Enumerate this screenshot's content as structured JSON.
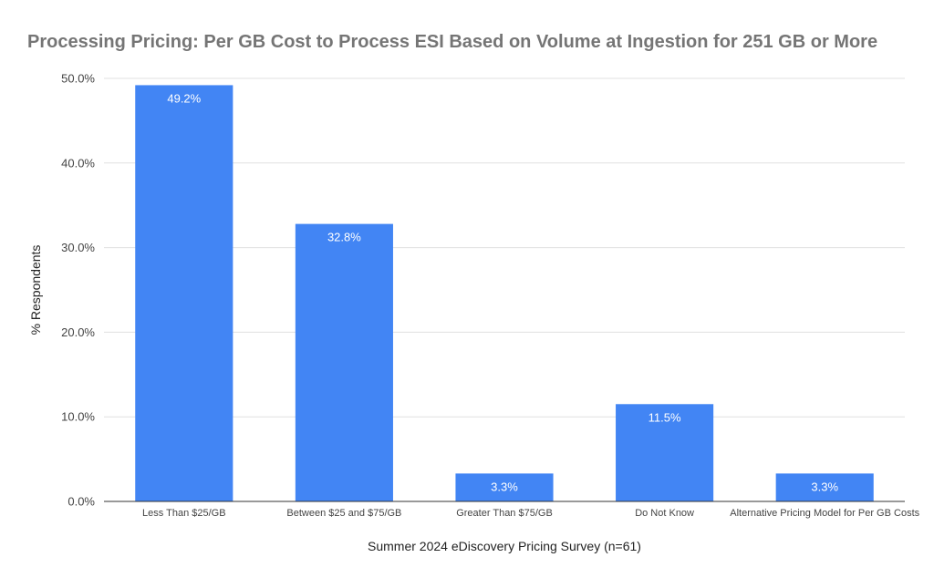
{
  "chart_data": {
    "type": "bar",
    "title": "Processing Pricing: Per GB Cost to Process ESI Based on Volume at Ingestion for 251 GB or More",
    "xlabel": "Summer 2024 eDiscovery Pricing Survey (n=61)",
    "ylabel": "% Respondents",
    "categories": [
      "Less Than $25/GB",
      "Between $25 and $75/GB",
      "Greater Than $75/GB",
      "Do Not Know",
      "Alternative Pricing Model for Per GB Costs"
    ],
    "values": [
      49.2,
      32.8,
      3.3,
      11.5,
      3.3
    ],
    "data_labels": [
      "49.2%",
      "32.8%",
      "3.3%",
      "11.5%",
      "3.3%"
    ],
    "ylim": [
      0,
      50
    ],
    "y_ticks": [
      0,
      10,
      20,
      30,
      40,
      50
    ],
    "y_tick_labels": [
      "0.0%",
      "10.0%",
      "20.0%",
      "30.0%",
      "40.0%",
      "50.0%"
    ],
    "grid": true,
    "legend": "none",
    "bar_color": "#4285f4"
  }
}
